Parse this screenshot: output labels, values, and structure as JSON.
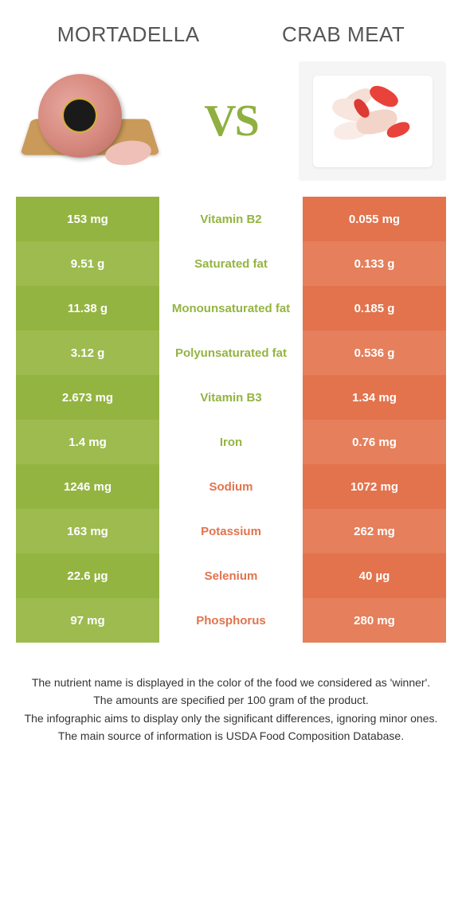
{
  "colors": {
    "food1": "#94b441",
    "food1_alt": "#9dbb4f",
    "food2": "#e2734d",
    "food2_alt": "#e57f5c",
    "vs": "#8fb040"
  },
  "header": {
    "food1_title": "Mortadella",
    "food2_title": "Crab meat",
    "vs_label": "VS"
  },
  "rows": [
    {
      "left": "153 mg",
      "mid": "Vitamin B2",
      "right": "0.055 mg",
      "winner": "food1"
    },
    {
      "left": "9.51 g",
      "mid": "Saturated fat",
      "right": "0.133 g",
      "winner": "food1"
    },
    {
      "left": "11.38 g",
      "mid": "Monounsaturated fat",
      "right": "0.185 g",
      "winner": "food1"
    },
    {
      "left": "3.12 g",
      "mid": "Polyunsaturated fat",
      "right": "0.536 g",
      "winner": "food1"
    },
    {
      "left": "2.673 mg",
      "mid": "Vitamin B3",
      "right": "1.34 mg",
      "winner": "food1"
    },
    {
      "left": "1.4 mg",
      "mid": "Iron",
      "right": "0.76 mg",
      "winner": "food1"
    },
    {
      "left": "1246 mg",
      "mid": "Sodium",
      "right": "1072 mg",
      "winner": "food2"
    },
    {
      "left": "163 mg",
      "mid": "Potassium",
      "right": "262 mg",
      "winner": "food2"
    },
    {
      "left": "22.6 µg",
      "mid": "Selenium",
      "right": "40 µg",
      "winner": "food2"
    },
    {
      "left": "97 mg",
      "mid": "Phosphorus",
      "right": "280 mg",
      "winner": "food2"
    }
  ],
  "notes": [
    "The nutrient name is displayed in the color of the food we considered as 'winner'.",
    "The amounts are specified per 100 gram of the product.",
    "The infographic aims to display only the significant differences, ignoring minor ones.",
    "The main source of information is USDA Food Composition Database."
  ]
}
